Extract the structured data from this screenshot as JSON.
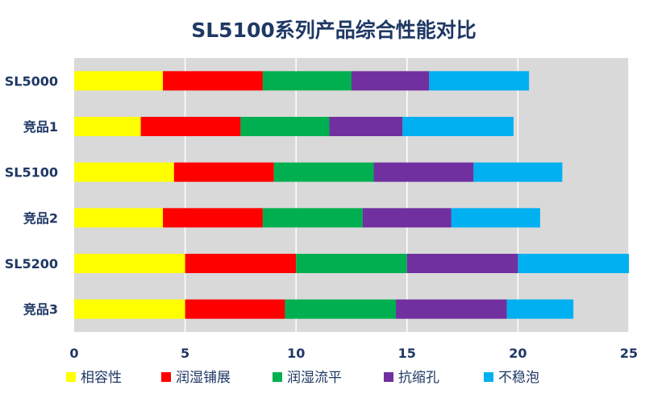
{
  "chart_data": {
    "type": "bar",
    "orientation": "horizontal",
    "stacked": true,
    "title": "SL5100系列产品综合性能对比",
    "xlabel": "",
    "ylabel": "",
    "xlim": [
      0,
      25
    ],
    "xticks": [
      0,
      5,
      10,
      15,
      20,
      25
    ],
    "grid": true,
    "legend_position": "bottom",
    "categories": [
      "SL5000",
      "竞品1",
      "SL5100",
      "竞品2",
      "SL5200",
      "竞品3"
    ],
    "series": [
      {
        "name": "相容性",
        "color": "#ffff00",
        "values": [
          4,
          3,
          4.5,
          4,
          5,
          5
        ]
      },
      {
        "name": "润湿铺展",
        "color": "#ff0000",
        "values": [
          4.5,
          4.5,
          4.5,
          4.5,
          5,
          4.5
        ]
      },
      {
        "name": "润湿流平",
        "color": "#00b050",
        "values": [
          4,
          4,
          4.5,
          4.5,
          5,
          5
        ]
      },
      {
        "name": "抗缩孔",
        "color": "#7030a0",
        "values": [
          3.5,
          3.3,
          4.5,
          4,
          5,
          5
        ]
      },
      {
        "name": "不稳泡",
        "color": "#00b0f0",
        "values": [
          4.5,
          5,
          4,
          4,
          5,
          3
        ]
      }
    ]
  }
}
